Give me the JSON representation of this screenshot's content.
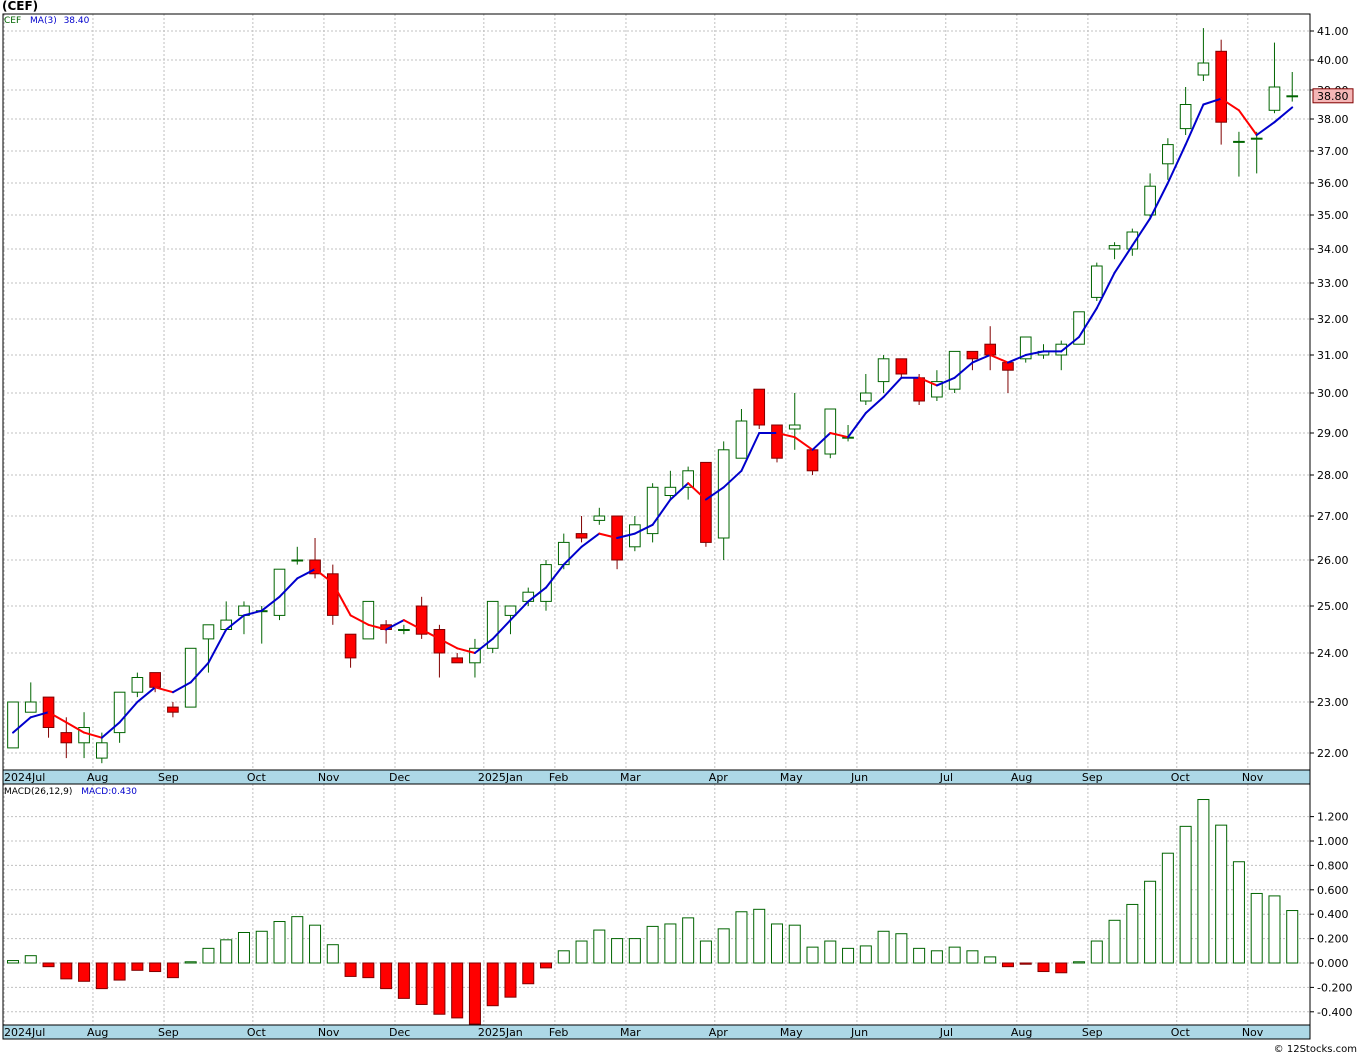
{
  "header": {
    "title": "(CEF)"
  },
  "legend": {
    "symbol": "CEF",
    "ma_label": "MA(3)",
    "ma_value": "38.40",
    "macd_label": "MACD(26,12,9)",
    "macd_value": "MACD:0.430"
  },
  "last_price_label": "38.80",
  "footer": {
    "credit": "© 12Stocks.com"
  },
  "colors": {
    "up": "#006400",
    "down": "#ff0000",
    "ma_up": "#0000cc",
    "ma_down": "#ff0000",
    "grid": "#c0c0c0",
    "axis_band": "#add8e6",
    "price_tag": "#f4b6b6"
  },
  "chart_data": [
    {
      "type": "candlestick",
      "title": "(CEF)",
      "timeframe": "weekly",
      "ylim": [
        21.6,
        41.3
      ],
      "yticks": [
        22,
        23,
        24,
        25,
        26,
        27,
        28,
        29,
        30,
        31,
        32,
        33,
        34,
        35,
        36,
        37,
        38,
        39,
        40,
        41
      ],
      "ytick_labels": [
        "22.00",
        "23.00",
        "24.00",
        "25.00",
        "26.00",
        "27.00",
        "28.00",
        "29.00",
        "30.00",
        "31.00",
        "32.00",
        "33.00",
        "34.00",
        "35.00",
        "36.00",
        "37.00",
        "38.00",
        "39.00",
        "40.00",
        "41.00"
      ],
      "x_labels": [
        {
          "label": "2024Jul",
          "index": 0
        },
        {
          "label": "Aug",
          "index": 5
        },
        {
          "label": "Sep",
          "index": 9
        },
        {
          "label": "Oct",
          "index": 14
        },
        {
          "label": "Nov",
          "index": 18
        },
        {
          "label": "Dec",
          "index": 22
        },
        {
          "label": "2025Jan",
          "index": 27
        },
        {
          "label": "Feb",
          "index": 31
        },
        {
          "label": "Mar",
          "index": 35
        },
        {
          "label": "Apr",
          "index": 40
        },
        {
          "label": "May",
          "index": 44
        },
        {
          "label": "Jun",
          "index": 48
        },
        {
          "label": "Jul",
          "index": 53
        },
        {
          "label": "Aug",
          "index": 57
        },
        {
          "label": "Sep",
          "index": 61
        },
        {
          "label": "Oct",
          "index": 66
        },
        {
          "label": "Nov",
          "index": 70
        }
      ],
      "ohlc": [
        [
          22.1,
          23.0,
          22.1,
          23.0
        ],
        [
          22.8,
          23.4,
          22.8,
          23.0
        ],
        [
          23.1,
          23.1,
          22.3,
          22.5
        ],
        [
          22.4,
          22.7,
          21.9,
          22.2
        ],
        [
          22.2,
          22.8,
          21.9,
          22.5
        ],
        [
          21.9,
          22.4,
          21.8,
          22.2
        ],
        [
          22.4,
          23.2,
          22.2,
          23.2
        ],
        [
          23.2,
          23.6,
          23.1,
          23.5
        ],
        [
          23.6,
          23.6,
          23.2,
          23.3
        ],
        [
          22.9,
          23.0,
          22.7,
          22.8
        ],
        [
          22.9,
          24.1,
          22.9,
          24.1
        ],
        [
          24.3,
          24.6,
          23.6,
          24.6
        ],
        [
          24.5,
          25.1,
          24.5,
          24.7
        ],
        [
          24.8,
          25.1,
          24.4,
          25.0
        ],
        [
          24.9,
          25.0,
          24.2,
          24.9
        ],
        [
          24.8,
          25.8,
          24.7,
          25.8
        ],
        [
          26.0,
          26.3,
          25.9,
          26.0
        ],
        [
          26.0,
          26.5,
          25.6,
          25.7
        ],
        [
          25.7,
          25.9,
          24.6,
          24.8
        ],
        [
          24.4,
          24.4,
          23.7,
          23.9
        ],
        [
          24.3,
          25.1,
          24.3,
          25.1
        ],
        [
          24.6,
          24.7,
          24.2,
          24.5
        ],
        [
          24.5,
          24.6,
          24.4,
          24.5
        ],
        [
          25.0,
          25.2,
          24.3,
          24.4
        ],
        [
          24.5,
          24.6,
          23.5,
          24.0
        ],
        [
          23.9,
          24.0,
          23.8,
          23.8
        ],
        [
          23.8,
          24.3,
          23.5,
          24.1
        ],
        [
          24.1,
          25.1,
          24.0,
          25.1
        ],
        [
          24.8,
          25.0,
          24.4,
          25.0
        ],
        [
          25.1,
          25.4,
          25.0,
          25.3
        ],
        [
          25.1,
          26.0,
          24.9,
          25.9
        ],
        [
          25.9,
          26.6,
          25.8,
          26.4
        ],
        [
          26.6,
          27.0,
          26.4,
          26.5
        ],
        [
          26.9,
          27.2,
          26.8,
          27.0
        ],
        [
          27.0,
          27.0,
          25.8,
          26.0
        ],
        [
          26.3,
          27.0,
          26.2,
          26.8
        ],
        [
          26.6,
          27.8,
          26.4,
          27.7
        ],
        [
          27.5,
          28.1,
          27.4,
          27.7
        ],
        [
          27.7,
          28.2,
          27.4,
          28.1
        ],
        [
          28.3,
          28.3,
          26.3,
          26.4
        ],
        [
          26.5,
          28.8,
          26.0,
          28.6
        ],
        [
          28.4,
          29.6,
          28.4,
          29.3
        ],
        [
          30.1,
          30.1,
          29.1,
          29.2
        ],
        [
          29.2,
          29.2,
          28.3,
          28.4
        ],
        [
          29.1,
          30.0,
          28.6,
          29.2
        ],
        [
          28.6,
          28.6,
          28.0,
          28.1
        ],
        [
          28.5,
          29.6,
          28.4,
          29.6
        ],
        [
          28.9,
          29.2,
          28.8,
          28.9
        ],
        [
          29.8,
          30.5,
          29.7,
          30.0
        ],
        [
          30.3,
          31.0,
          30.0,
          30.9
        ],
        [
          30.9,
          30.9,
          30.4,
          30.5
        ],
        [
          30.4,
          30.5,
          29.7,
          29.8
        ],
        [
          29.9,
          30.6,
          29.8,
          30.3
        ],
        [
          30.1,
          31.1,
          30.0,
          31.1
        ],
        [
          31.1,
          31.1,
          30.6,
          30.9
        ],
        [
          31.3,
          31.8,
          30.6,
          31.0
        ],
        [
          30.8,
          30.8,
          30.0,
          30.6
        ],
        [
          30.9,
          31.5,
          30.8,
          31.5
        ],
        [
          31.0,
          31.3,
          30.9,
          31.1
        ],
        [
          31.0,
          31.4,
          30.6,
          31.3
        ],
        [
          31.3,
          32.2,
          31.3,
          32.2
        ],
        [
          32.6,
          33.6,
          32.5,
          33.5
        ],
        [
          34.0,
          34.2,
          33.7,
          34.1
        ],
        [
          34.0,
          34.6,
          33.8,
          34.5
        ],
        [
          35.0,
          36.3,
          34.9,
          35.9
        ],
        [
          36.6,
          37.4,
          36.1,
          37.2
        ],
        [
          37.7,
          39.1,
          37.5,
          38.5
        ],
        [
          39.5,
          41.1,
          39.3,
          39.9
        ],
        [
          40.3,
          40.7,
          37.2,
          37.9
        ],
        [
          37.3,
          37.6,
          36.2,
          37.3
        ],
        [
          37.4,
          37.6,
          36.3,
          37.4
        ],
        [
          38.3,
          40.6,
          38.2,
          39.1
        ],
        [
          38.8,
          39.6,
          38.6,
          38.8
        ]
      ],
      "ma3": [
        22.4,
        22.7,
        22.8,
        22.6,
        22.4,
        22.3,
        22.6,
        23.0,
        23.3,
        23.2,
        23.4,
        23.8,
        24.5,
        24.8,
        24.9,
        25.2,
        25.6,
        25.8,
        25.5,
        24.8,
        24.6,
        24.5,
        24.7,
        24.5,
        24.3,
        24.1,
        24.0,
        24.3,
        24.7,
        25.1,
        25.4,
        25.9,
        26.3,
        26.6,
        26.5,
        26.6,
        26.8,
        27.4,
        27.8,
        27.4,
        27.7,
        28.1,
        29.0,
        29.0,
        28.9,
        28.6,
        29.0,
        28.9,
        29.5,
        29.9,
        30.4,
        30.4,
        30.2,
        30.4,
        30.8,
        31.0,
        30.8,
        31.0,
        31.1,
        31.1,
        31.5,
        32.3,
        33.3,
        34.1,
        34.9,
        36.0,
        37.2,
        38.5,
        38.7,
        38.3,
        37.5,
        37.9,
        38.4
      ],
      "last_price": 38.8
    },
    {
      "type": "bar",
      "title": "MACD(26,12,9)",
      "ylim": [
        -0.5,
        1.4
      ],
      "yticks": [
        -0.4,
        -0.2,
        0.0,
        0.2,
        0.4,
        0.6,
        0.8,
        1.0,
        1.2
      ],
      "ytick_labels": [
        "-0.400",
        "-0.200",
        "0.000",
        "0.200",
        "0.400",
        "0.600",
        "0.800",
        "1.000",
        "1.200"
      ],
      "values": [
        0.02,
        0.06,
        -0.03,
        -0.13,
        -0.15,
        -0.21,
        -0.14,
        -0.06,
        -0.07,
        -0.12,
        0.01,
        0.12,
        0.19,
        0.25,
        0.26,
        0.34,
        0.38,
        0.31,
        0.15,
        -0.11,
        -0.12,
        -0.21,
        -0.29,
        -0.34,
        -0.42,
        -0.45,
        -0.5,
        -0.35,
        -0.28,
        -0.17,
        -0.04,
        0.1,
        0.18,
        0.27,
        0.2,
        0.2,
        0.3,
        0.32,
        0.37,
        0.18,
        0.28,
        0.42,
        0.44,
        0.32,
        0.31,
        0.13,
        0.18,
        0.12,
        0.14,
        0.26,
        0.24,
        0.12,
        0.1,
        0.13,
        0.1,
        0.05,
        -0.03,
        -0.01,
        -0.07,
        -0.08,
        0.01,
        0.18,
        0.35,
        0.48,
        0.67,
        0.9,
        1.12,
        1.34,
        1.13,
        0.83,
        0.57,
        0.55,
        0.43
      ],
      "last_value": 0.43
    }
  ]
}
